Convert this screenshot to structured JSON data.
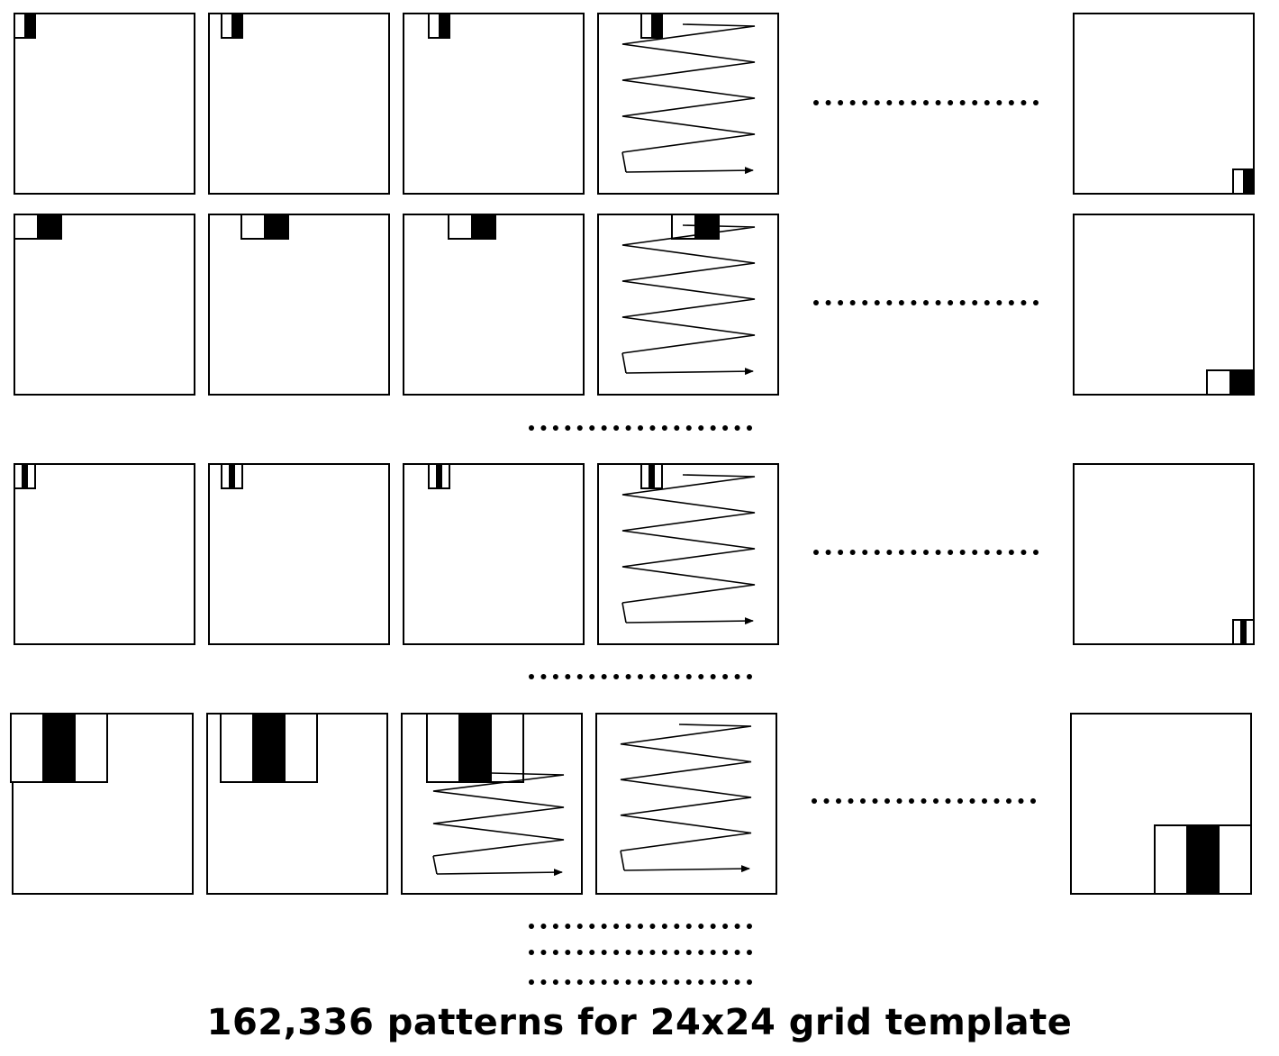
{
  "caption": "162,336 patterns for 24x24 grid template",
  "rows": [
    {
      "feature": "edge-horizontal-narrow",
      "panels": [
        {
          "feature_position": "top-left",
          "scan_path": false
        },
        {
          "feature_position": "top-left, shifted right",
          "scan_path": false
        },
        {
          "feature_position": "top-left, shifted right",
          "scan_path": false
        },
        {
          "feature_position": "top-left, shifted right",
          "scan_path": true
        },
        {
          "feature_position": "bottom-right",
          "scan_path": false,
          "last": true
        }
      ]
    },
    {
      "feature": "edge-horizontal-wide",
      "panels": [
        {
          "feature_position": "top-left",
          "scan_path": false
        },
        {
          "feature_position": "top-left, shifted right",
          "scan_path": false
        },
        {
          "feature_position": "top-left, shifted right",
          "scan_path": false
        },
        {
          "feature_position": "top-left, shifted right",
          "scan_path": true
        },
        {
          "feature_position": "bottom-right",
          "scan_path": false,
          "last": true
        }
      ]
    },
    {
      "feature": "line-three-band-narrow",
      "panels": [
        {
          "feature_position": "top-left",
          "scan_path": false
        },
        {
          "feature_position": "top-left, shifted right",
          "scan_path": false
        },
        {
          "feature_position": "top-left, shifted right",
          "scan_path": false
        },
        {
          "feature_position": "top-left, shifted right",
          "scan_path": true
        },
        {
          "feature_position": "bottom-right",
          "scan_path": false,
          "last": true
        }
      ]
    },
    {
      "feature": "line-three-band-large",
      "panels": [
        {
          "feature_position": "top-left",
          "scan_path": false
        },
        {
          "feature_position": "top-left, shifted right",
          "scan_path": false
        },
        {
          "feature_position": "top, shifted right",
          "scan_path": true
        },
        {
          "feature_position": "scanning",
          "scan_path": true
        },
        {
          "feature_position": "bottom-right",
          "scan_path": false,
          "last": true
        }
      ]
    }
  ],
  "colors": {
    "ink": "#000000",
    "paper": "#ffffff"
  }
}
